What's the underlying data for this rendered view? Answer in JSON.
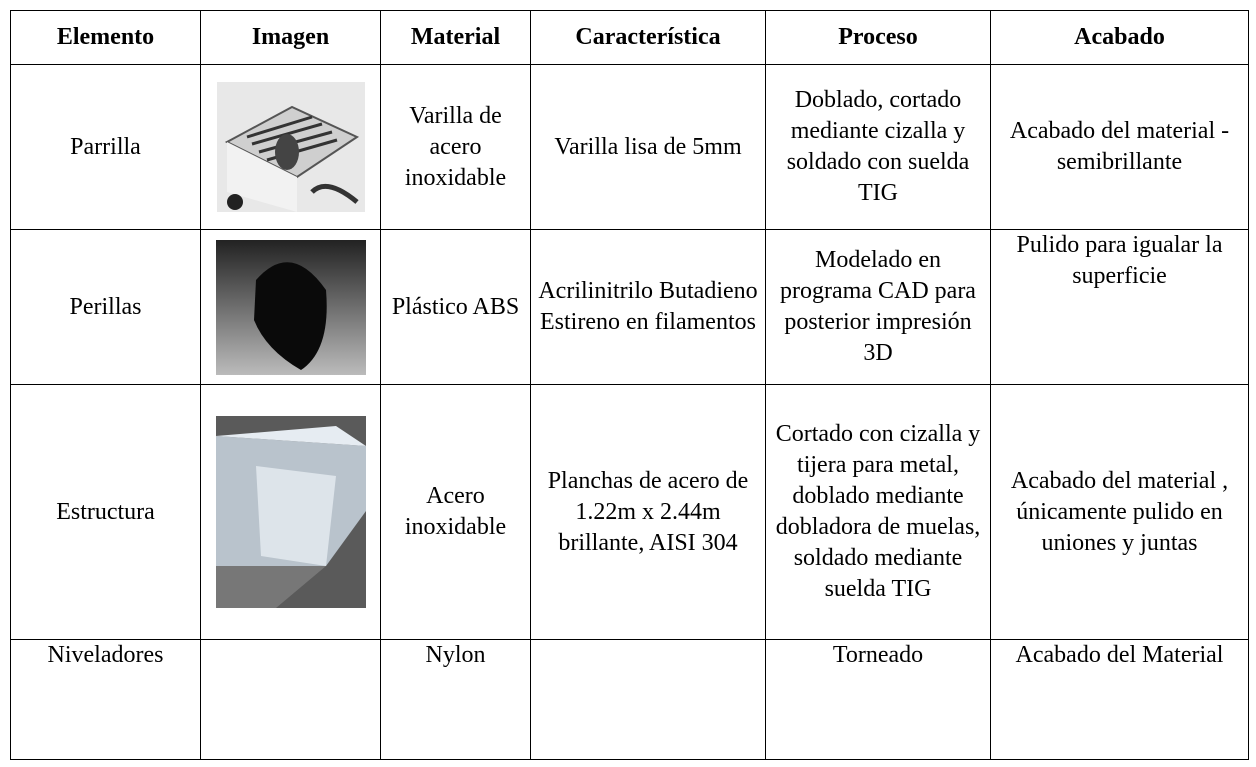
{
  "table": {
    "header": [
      "Elemento",
      "Imagen",
      "Material",
      "Característica",
      "Proceso",
      "Acabado"
    ],
    "rows": [
      {
        "elemento": "Parrilla",
        "material": "Varilla de acero inoxidable",
        "caracteristica": "Varilla lisa de 5mm",
        "proceso": "Doblado, cortado mediante cizalla y soldado con suelda TIG",
        "acabado": "Acabado del material - semibrillante"
      },
      {
        "elemento": "Perillas",
        "material": "Plástico ABS",
        "caracteristica": "Acrilinitrilo Butadieno Estireno en filamentos",
        "proceso": "Modelado en programa CAD para posterior impresión 3D",
        "acabado": "Pulido para igualar la superficie"
      },
      {
        "elemento": "Estructura",
        "material": "Acero inoxidable",
        "caracteristica": "Planchas de acero de 1.22m x 2.44m brillante, AISI 304",
        "proceso": "Cortado con cizalla y tijera para metal, doblado mediante dobladora de muelas, soldado mediante suelda TIG",
        "acabado": "Acabado del material , únicamente pulido en uniones y juntas"
      },
      {
        "elemento": "Niveladores",
        "material": "Nylon",
        "proceso": "Torneado",
        "acabado": "Acabado del Material"
      }
    ]
  }
}
